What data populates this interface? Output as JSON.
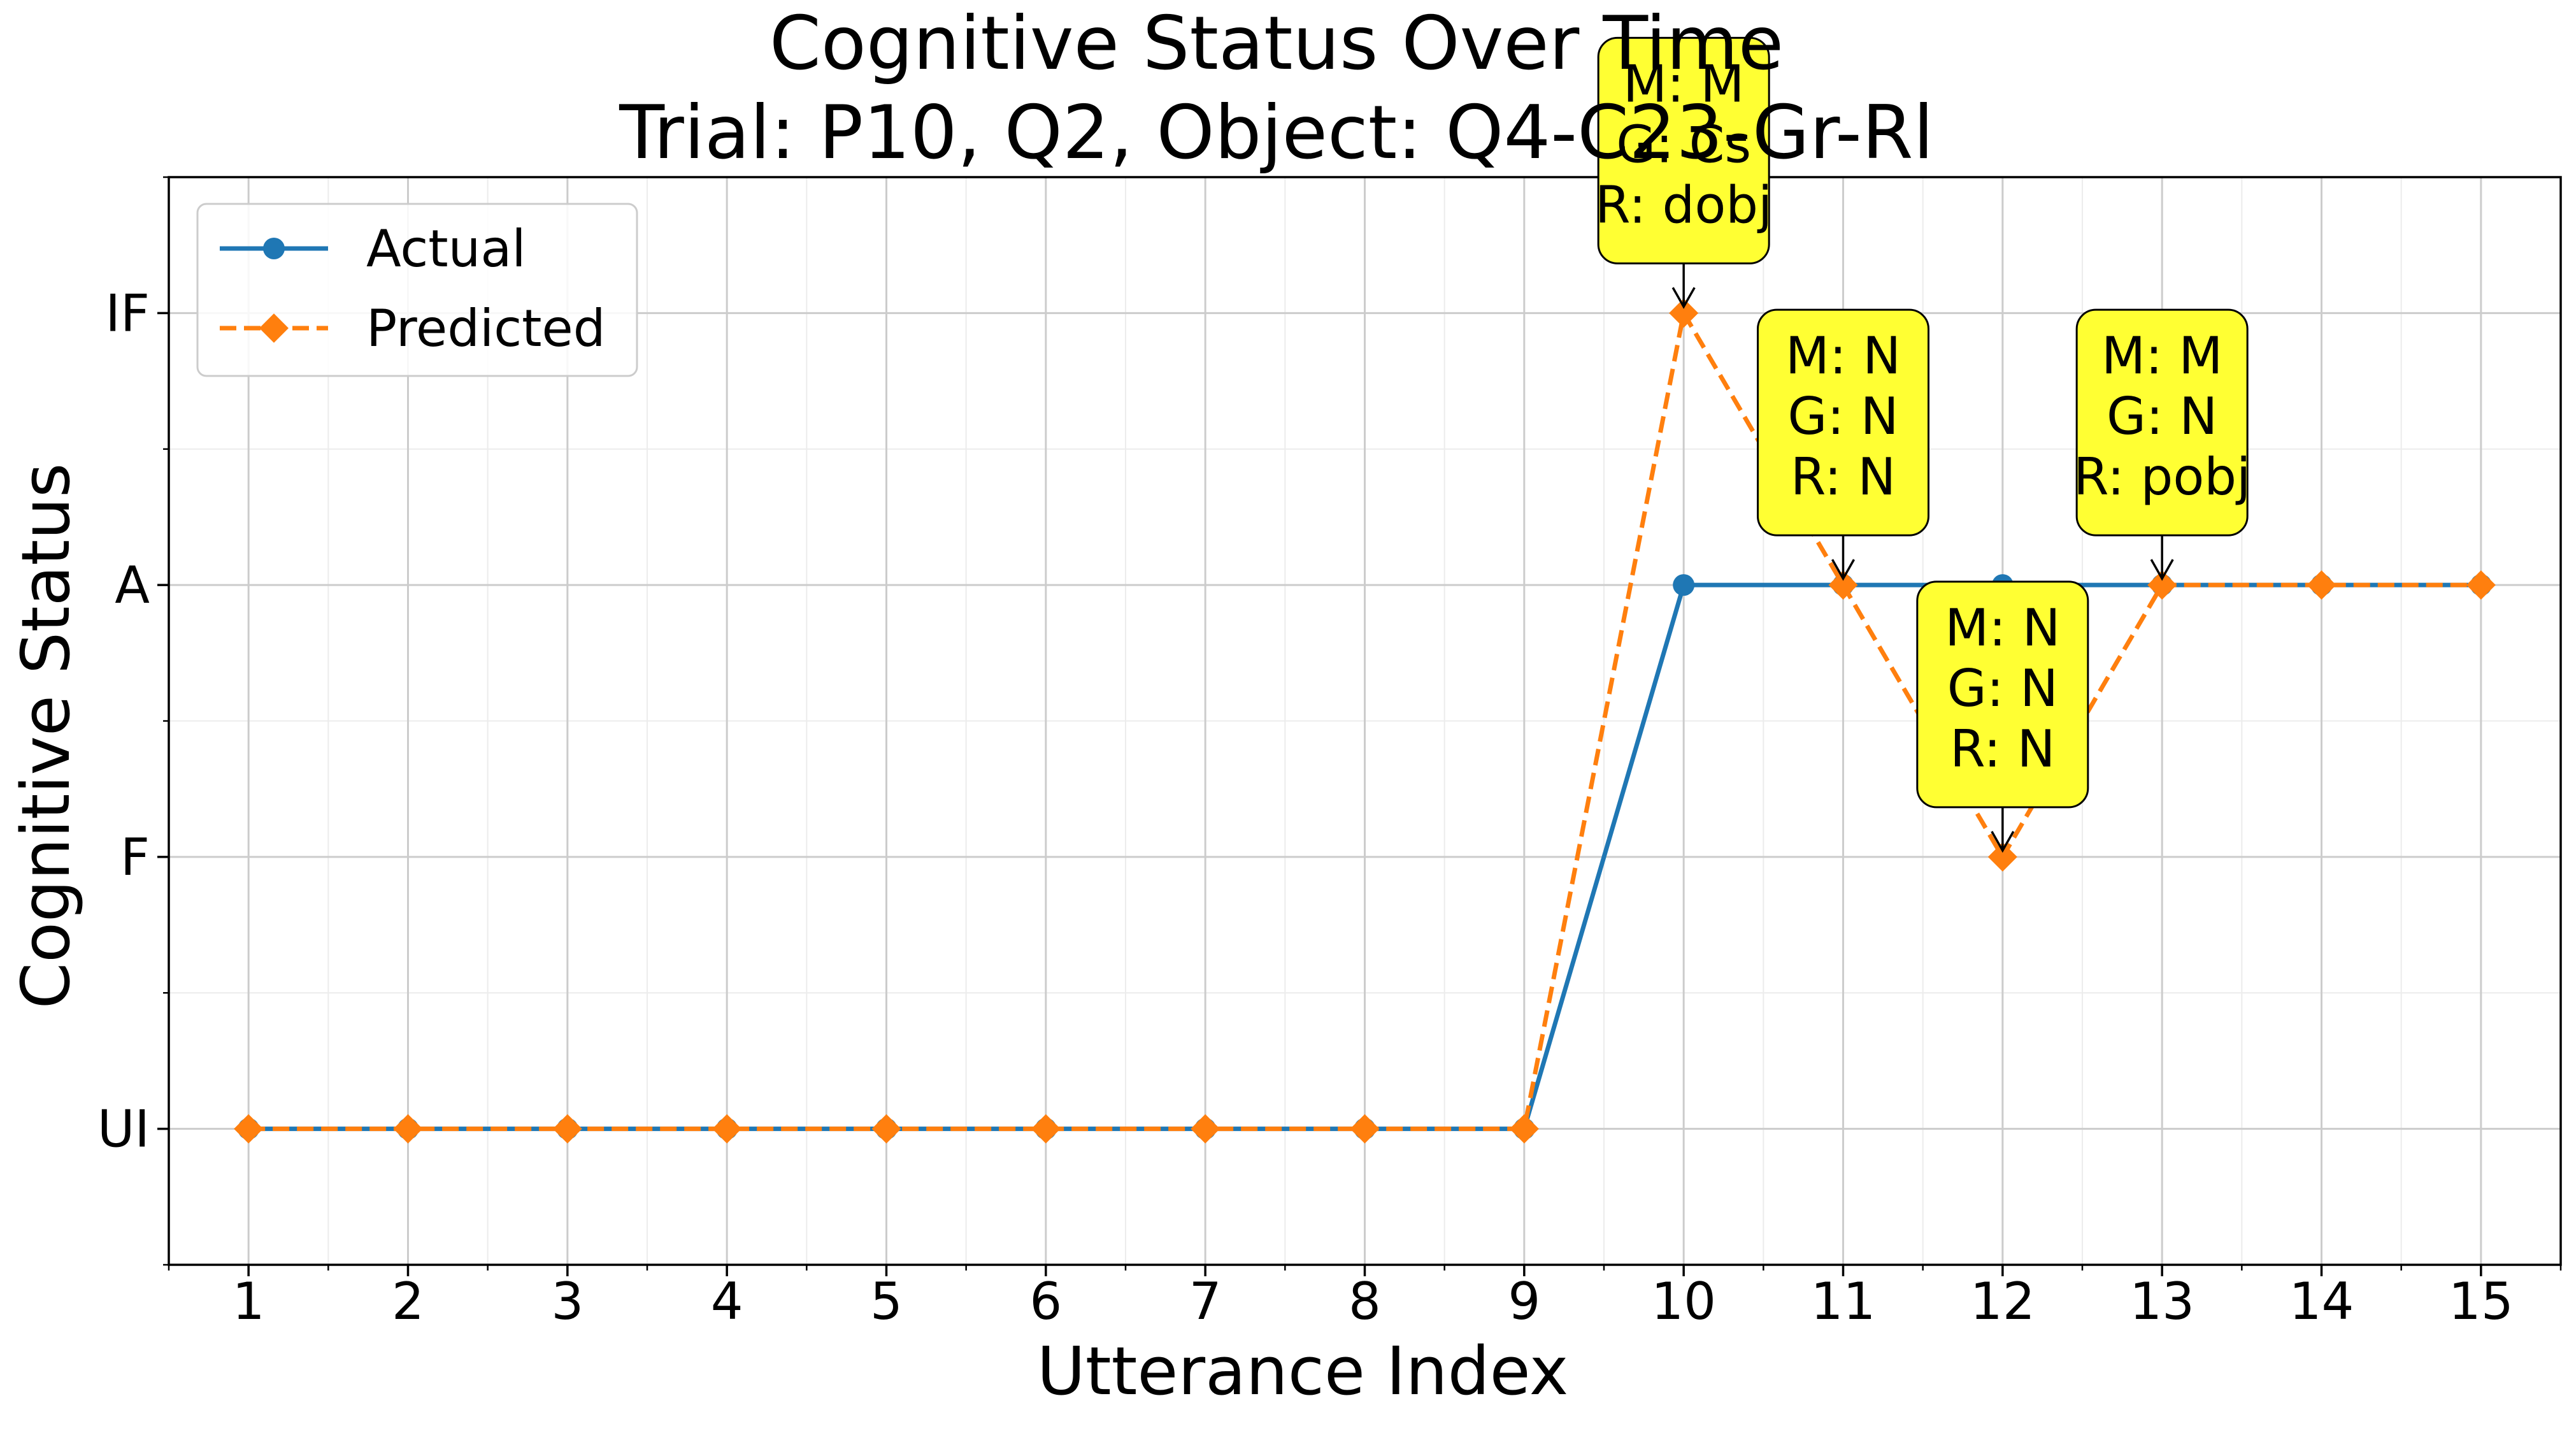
{
  "chart_data": {
    "type": "line",
    "title_line1": "Cognitive Status Over Time",
    "title_line2": "Trial: P10, Q2, Object: Q4-C23-Gr-Rl",
    "xlabel": "Utterance Index",
    "ylabel": "Cognitive Status",
    "x": [
      1,
      2,
      3,
      4,
      5,
      6,
      7,
      8,
      9,
      10,
      11,
      12,
      13,
      14,
      15
    ],
    "xlim": [
      0.5,
      15.5
    ],
    "y_categories": [
      "UI",
      "F",
      "A",
      "IF"
    ],
    "y_levels": [
      0,
      1,
      2,
      3
    ],
    "ylim": [
      -0.5,
      3.5
    ],
    "grid": true,
    "legend_position": "top-left",
    "series": [
      {
        "name": "Actual",
        "color": "#1f77b4",
        "style": "solid",
        "marker": "circle",
        "values": [
          "UI",
          "UI",
          "UI",
          "UI",
          "UI",
          "UI",
          "UI",
          "UI",
          "UI",
          "A",
          "A",
          "A",
          "A",
          "A",
          "A"
        ]
      },
      {
        "name": "Predicted",
        "color": "#ff7f0e",
        "style": "dashed",
        "marker": "diamond",
        "values": [
          "UI",
          "UI",
          "UI",
          "UI",
          "UI",
          "UI",
          "UI",
          "UI",
          "UI",
          "IF",
          "A",
          "F",
          "A",
          "A",
          "A"
        ]
      }
    ],
    "annotations": [
      {
        "x": 10,
        "status": "IF",
        "lines": [
          "M: M",
          "G: Cs",
          "R: dobj"
        ]
      },
      {
        "x": 11,
        "status": "A",
        "lines": [
          "M: N",
          "G: N",
          "R: N"
        ]
      },
      {
        "x": 12,
        "status": "F",
        "lines": [
          "M: N",
          "G: N",
          "R: N"
        ]
      },
      {
        "x": 13,
        "status": "A",
        "lines": [
          "M: M",
          "G: N",
          "R: pobj"
        ]
      }
    ],
    "annotation_color": "#ffff33"
  }
}
